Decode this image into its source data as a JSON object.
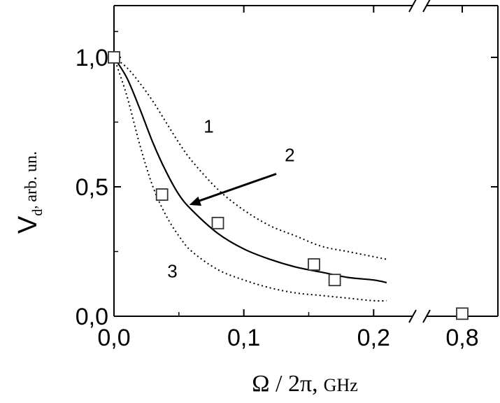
{
  "chart_data": {
    "type": "line",
    "title": "",
    "xlabel": {
      "main": "Ω / 2π,",
      "unit": "GHz"
    },
    "ylabel": {
      "main": "V",
      "sub": "d",
      "unit": "arb. un."
    },
    "x_segments": [
      {
        "xlim": [
          0.0,
          0.23
        ],
        "ticks": [
          0.0,
          0.1,
          0.2
        ],
        "tick_labels": [
          "0,0",
          "0,1",
          "0,2"
        ]
      },
      {
        "xlim": [
          0.75,
          0.85
        ],
        "ticks": [
          0.8
        ],
        "tick_labels": [
          "0,8"
        ]
      }
    ],
    "axis_break": true,
    "ylim": [
      0.0,
      1.2
    ],
    "yticks": [
      0.0,
      0.5,
      1.0
    ],
    "ytick_labels": [
      "0,0",
      "0,5",
      "1,0"
    ],
    "series": [
      {
        "name": "1",
        "style": "dotted",
        "x": [
          0.0,
          0.01,
          0.02,
          0.03,
          0.04,
          0.05,
          0.06,
          0.08,
          0.1,
          0.12,
          0.14,
          0.16,
          0.18,
          0.2,
          0.21
        ],
        "y": [
          1.0,
          0.96,
          0.9,
          0.83,
          0.75,
          0.67,
          0.6,
          0.49,
          0.41,
          0.35,
          0.31,
          0.27,
          0.25,
          0.23,
          0.22
        ]
      },
      {
        "name": "2",
        "style": "solid",
        "x": [
          0.0,
          0.01,
          0.02,
          0.03,
          0.04,
          0.05,
          0.06,
          0.08,
          0.1,
          0.12,
          0.14,
          0.16,
          0.18,
          0.2,
          0.21
        ],
        "y": [
          1.0,
          0.92,
          0.8,
          0.67,
          0.56,
          0.47,
          0.41,
          0.32,
          0.26,
          0.22,
          0.19,
          0.17,
          0.15,
          0.14,
          0.13
        ]
      },
      {
        "name": "3",
        "style": "dotted",
        "x": [
          0.0,
          0.01,
          0.02,
          0.03,
          0.04,
          0.05,
          0.06,
          0.08,
          0.1,
          0.12,
          0.14,
          0.16,
          0.18,
          0.2,
          0.21
        ],
        "y": [
          1.0,
          0.85,
          0.66,
          0.5,
          0.39,
          0.31,
          0.25,
          0.18,
          0.14,
          0.11,
          0.09,
          0.08,
          0.07,
          0.06,
          0.06
        ]
      }
    ],
    "markers": {
      "shape": "open-square",
      "x": [
        0.0,
        0.037,
        0.08,
        0.154,
        0.17,
        0.8
      ],
      "y": [
        1.0,
        0.47,
        0.36,
        0.2,
        0.14,
        0.01
      ]
    },
    "arrow_annotation": {
      "label": "2",
      "from": [
        0.125,
        0.55
      ],
      "to": [
        0.058,
        0.43
      ]
    },
    "curve_labels": [
      {
        "text": "1",
        "x": 0.073,
        "y": 0.71
      },
      {
        "text": "3",
        "x": 0.045,
        "y": 0.15
      }
    ],
    "grid": false,
    "legend": "none"
  }
}
